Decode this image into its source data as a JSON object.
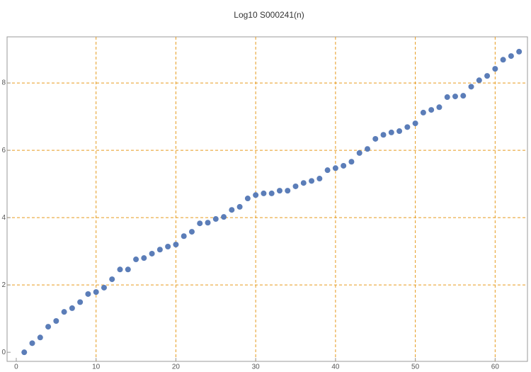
{
  "chart_data": {
    "type": "scatter",
    "title": "Log10 S000241(n)",
    "x": [
      1,
      2,
      3,
      4,
      5,
      6,
      7,
      8,
      9,
      10,
      11,
      12,
      13,
      14,
      15,
      16,
      17,
      18,
      19,
      20,
      21,
      22,
      23,
      24,
      25,
      26,
      27,
      28,
      29,
      30,
      31,
      32,
      33,
      34,
      35,
      36,
      37,
      38,
      39,
      40,
      41,
      42,
      43,
      44,
      45,
      46,
      47,
      48,
      49,
      50,
      51,
      52,
      53,
      54,
      55,
      56,
      57,
      58,
      59,
      60,
      61,
      62,
      63
    ],
    "values": [
      0,
      0.27,
      0.44,
      0.76,
      0.93,
      1.2,
      1.31,
      1.49,
      1.73,
      1.79,
      1.92,
      2.17,
      2.46,
      2.46,
      2.76,
      2.8,
      2.93,
      3.05,
      3.14,
      3.2,
      3.45,
      3.58,
      3.83,
      3.85,
      3.96,
      4.02,
      4.23,
      4.32,
      4.57,
      4.67,
      4.72,
      4.72,
      4.8,
      4.8,
      4.93,
      5.03,
      5.09,
      5.16,
      5.41,
      5.47,
      5.54,
      5.66,
      5.92,
      6.04,
      6.34,
      6.46,
      6.53,
      6.57,
      6.69,
      6.8,
      7.12,
      7.2,
      7.28,
      7.58,
      7.6,
      7.62,
      7.89,
      8.08,
      8.21,
      8.42,
      8.69,
      8.8,
      8.93
    ],
    "color": "#5b7db8",
    "xlim": [
      -1.15,
      64.05
    ],
    "ylim": [
      -0.27,
      9.37
    ],
    "xticks": [
      0,
      10,
      20,
      30,
      40,
      50,
      60
    ],
    "yticks": [
      0,
      2,
      4,
      6,
      8
    ],
    "grid": true,
    "grid_color": "#e69a1e"
  }
}
